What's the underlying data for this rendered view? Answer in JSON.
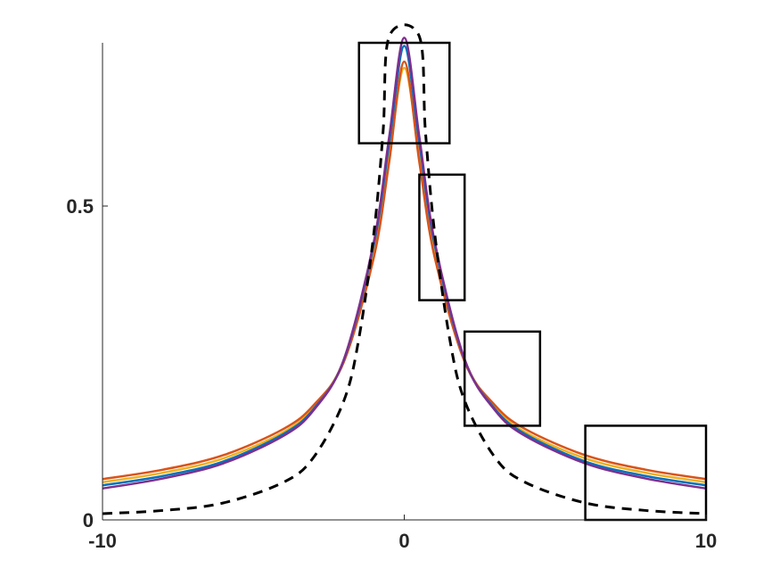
{
  "chart_data": {
    "type": "line",
    "title": "",
    "xlabel": "",
    "ylabel": "",
    "xlim": [
      -10,
      10
    ],
    "ylim": [
      0,
      0.76
    ],
    "x_ticks": [
      -10,
      0,
      10
    ],
    "x_tick_labels": [
      "-10",
      "0",
      "10"
    ],
    "y_ticks": [
      0,
      0.5
    ],
    "y_tick_labels": [
      "0",
      "0.5"
    ],
    "grid": false,
    "legend": "none",
    "axis_color": "#262626",
    "series": [
      {
        "color": "#EDB120",
        "style": "solid",
        "x": [
          -10,
          -8,
          -6,
          -4,
          -3,
          -2,
          -1,
          -0.5,
          0,
          0.5,
          1,
          2,
          3,
          4,
          6,
          8,
          10
        ],
        "y": [
          0.06,
          0.075,
          0.098,
          0.14,
          0.18,
          0.255,
          0.43,
          0.58,
          0.72,
          0.58,
          0.43,
          0.255,
          0.18,
          0.14,
          0.098,
          0.075,
          0.06
        ]
      },
      {
        "color": "#D95319",
        "style": "solid",
        "x": [
          -10,
          -8,
          -6,
          -4,
          -3,
          -2,
          -1,
          -0.5,
          0,
          0.5,
          1,
          2,
          3,
          4,
          6,
          8,
          10
        ],
        "y": [
          0.065,
          0.08,
          0.103,
          0.145,
          0.183,
          0.252,
          0.42,
          0.57,
          0.73,
          0.57,
          0.42,
          0.252,
          0.183,
          0.145,
          0.103,
          0.08,
          0.065
        ]
      },
      {
        "color": "#0072BD",
        "style": "solid",
        "x": [
          -10,
          -8,
          -6,
          -4,
          -3,
          -2,
          -1,
          -0.5,
          0,
          0.5,
          1,
          2,
          3,
          4,
          6,
          8,
          10
        ],
        "y": [
          0.055,
          0.07,
          0.093,
          0.137,
          0.177,
          0.255,
          0.44,
          0.6,
          0.755,
          0.6,
          0.44,
          0.255,
          0.177,
          0.137,
          0.093,
          0.07,
          0.055
        ]
      },
      {
        "color": "#7E2F8E",
        "style": "solid",
        "x": [
          -10,
          -8,
          -6,
          -4,
          -3,
          -2,
          -1,
          -0.5,
          0,
          0.5,
          1,
          2,
          3,
          4,
          6,
          8,
          10
        ],
        "y": [
          0.05,
          0.066,
          0.09,
          0.134,
          0.175,
          0.256,
          0.445,
          0.61,
          0.768,
          0.61,
          0.445,
          0.256,
          0.175,
          0.134,
          0.09,
          0.066,
          0.05
        ]
      },
      {
        "color": "#000000",
        "style": "dashed",
        "x": [
          -10,
          -8,
          -6,
          -4,
          -3,
          -2,
          -1.5,
          -1,
          -0.7,
          -0.5,
          0.5,
          0.7,
          1,
          1.5,
          2,
          3,
          4,
          6,
          8,
          10
        ],
        "y": [
          0.01,
          0.015,
          0.027,
          0.06,
          0.1,
          0.19,
          0.29,
          0.46,
          0.62,
          0.77,
          0.77,
          0.62,
          0.46,
          0.29,
          0.19,
          0.1,
          0.06,
          0.027,
          0.015,
          0.01
        ]
      }
    ],
    "annotations": [
      {
        "type": "rect",
        "x0": -1.5,
        "x1": 1.5,
        "y0": 0.6,
        "y1": 0.76
      },
      {
        "type": "rect",
        "x0": 0.5,
        "x1": 2.0,
        "y0": 0.35,
        "y1": 0.55
      },
      {
        "type": "rect",
        "x0": 2.0,
        "x1": 4.5,
        "y0": 0.15,
        "y1": 0.3
      },
      {
        "type": "rect",
        "x0": 6.0,
        "x1": 10.0,
        "y0": 0.0,
        "y1": 0.15
      }
    ]
  }
}
